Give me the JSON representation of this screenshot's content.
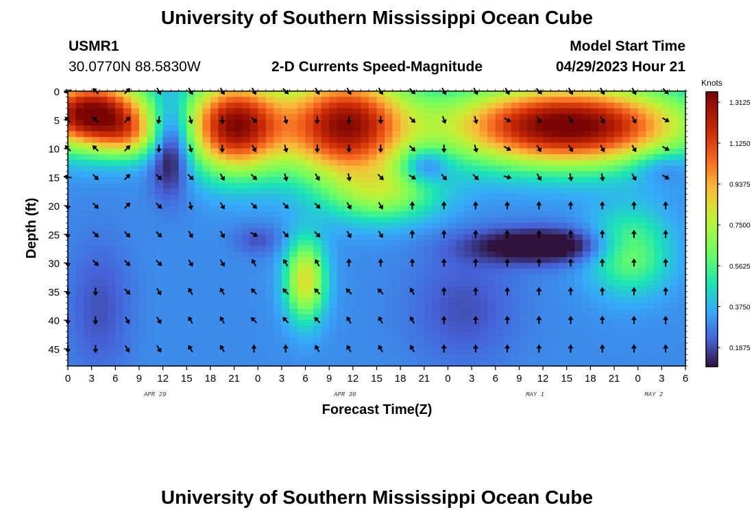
{
  "page_title": "University of Southern Mississippi Ocean Cube",
  "footer_title": "University of Southern Mississippi Ocean Cube",
  "station": {
    "id": "USMR1",
    "coordinates": "30.0770N  88.5830W"
  },
  "center_title": "2-D Currents Speed-Magnitude",
  "model_start": {
    "label": "Model Start Time",
    "value": "04/29/2023 Hour 21"
  },
  "chart_data": {
    "type": "heatmap",
    "title": "2-D Currents Speed-Magnitude",
    "xlabel": "Forecast Time(Z)",
    "ylabel": "Depth (ft)",
    "x_range_hours": [
      0,
      78
    ],
    "y_range_ft": [
      0,
      48
    ],
    "x_ticks": [
      "0",
      "3",
      "6",
      "9",
      "12",
      "15",
      "18",
      "21",
      "0",
      "3",
      "6",
      "9",
      "12",
      "15",
      "18",
      "21",
      "0",
      "3",
      "6",
      "9",
      "12",
      "15",
      "18",
      "21",
      "0",
      "3",
      "6"
    ],
    "y_ticks": [
      0,
      5,
      10,
      15,
      20,
      25,
      30,
      35,
      40,
      45
    ],
    "date_labels": [
      {
        "text": "APR 29",
        "hour": 11
      },
      {
        "text": "APR 30",
        "hour": 35
      },
      {
        "text": "MAY 1",
        "hour": 59
      },
      {
        "text": "MAY 2",
        "hour": 74
      }
    ],
    "colorbar": {
      "unit": "Knots",
      "range": [
        0.1,
        1.36
      ],
      "tick_values": [
        1.3125,
        1.125,
        0.9375,
        0.75,
        0.5625,
        0.375,
        0.1875
      ],
      "tick_labels": [
        "1.3125",
        "1.1250",
        "0.9375",
        "0.7500",
        "0.5625",
        "0.3750",
        "0.1875"
      ]
    },
    "base_speed_knots": 0.3,
    "speed_features": [
      {
        "t": 3,
        "d": 4,
        "st": 7,
        "sd": 6,
        "a": 1.1
      },
      {
        "t": 8,
        "d": 8,
        "st": 4,
        "sd": 4,
        "a": 0.3
      },
      {
        "t": 13,
        "d": 9,
        "st": 2.5,
        "sd": 8,
        "a": -0.35
      },
      {
        "t": 21,
        "d": 6,
        "st": 6,
        "sd": 8,
        "a": 1.0
      },
      {
        "t": 35,
        "d": 6,
        "st": 8,
        "sd": 9,
        "a": 1.0
      },
      {
        "t": 40,
        "d": 18,
        "st": 7,
        "sd": 5,
        "a": 0.35
      },
      {
        "t": 30,
        "d": 33,
        "st": 2.5,
        "sd": 7,
        "a": 0.55
      },
      {
        "t": 24,
        "d": 26,
        "st": 3,
        "sd": 2.5,
        "a": -0.1
      },
      {
        "t": 45,
        "d": 13,
        "st": 3,
        "sd": 3,
        "a": -0.25
      },
      {
        "t": 63,
        "d": 6,
        "st": 15,
        "sd": 7,
        "a": 1.1
      },
      {
        "t": 60,
        "d": 27,
        "st": 9,
        "sd": 3,
        "a": -0.3
      },
      {
        "t": 71,
        "d": 28,
        "st": 5,
        "sd": 7,
        "a": 0.35
      },
      {
        "t": 75,
        "d": 13,
        "st": 4,
        "sd": 3,
        "a": -0.15
      },
      {
        "t": 4,
        "d": 38,
        "st": 4,
        "sd": 12,
        "a": -0.1
      },
      {
        "t": 50,
        "d": 38,
        "st": 7,
        "sd": 10,
        "a": -0.1
      }
    ],
    "vector_rows_ft": [
      0,
      5,
      10,
      15,
      20,
      25,
      30,
      35,
      40,
      45
    ],
    "vector_cols_hours": [
      0,
      3.5,
      7.5,
      11.5,
      15.5,
      19.5,
      23.5,
      27.5,
      31.5,
      35.5,
      39.5,
      43.5,
      47.5,
      51.5,
      55.5,
      59.5,
      63.5,
      67.5,
      71.5,
      75.5
    ],
    "vector_angles_deg": [
      [
        200,
        135,
        45,
        300,
        300,
        300,
        300,
        315,
        300,
        300,
        300,
        315,
        300,
        300,
        300,
        315,
        300,
        300,
        300,
        315
      ],
      [
        135,
        135,
        45,
        260,
        285,
        270,
        315,
        285,
        270,
        270,
        270,
        315,
        290,
        285,
        330,
        300,
        300,
        300,
        300,
        330
      ],
      [
        135,
        135,
        45,
        270,
        285,
        270,
        300,
        285,
        270,
        270,
        270,
        315,
        270,
        285,
        330,
        300,
        300,
        300,
        300,
        330
      ],
      [
        170,
        315,
        45,
        315,
        315,
        300,
        315,
        285,
        300,
        280,
        315,
        330,
        310,
        315,
        345,
        300,
        280,
        280,
        300,
        330
      ],
      [
        270,
        315,
        45,
        315,
        280,
        300,
        315,
        315,
        315,
        300,
        300,
        90,
        90,
        90,
        90,
        90,
        90,
        90,
        90,
        90
      ],
      [
        270,
        315,
        315,
        315,
        300,
        300,
        330,
        315,
        315,
        300,
        300,
        90,
        90,
        90,
        90,
        90,
        90,
        90,
        90,
        90
      ],
      [
        270,
        315,
        315,
        315,
        300,
        300,
        120,
        120,
        120,
        90,
        90,
        90,
        90,
        90,
        90,
        90,
        90,
        90,
        90,
        90
      ],
      [
        270,
        270,
        315,
        300,
        120,
        120,
        135,
        135,
        135,
        135,
        135,
        120,
        90,
        90,
        90,
        90,
        90,
        90,
        90,
        90
      ],
      [
        270,
        270,
        300,
        300,
        120,
        120,
        135,
        135,
        135,
        120,
        120,
        120,
        90,
        90,
        90,
        90,
        90,
        90,
        90,
        90
      ],
      [
        270,
        270,
        300,
        300,
        120,
        120,
        90,
        90,
        120,
        120,
        120,
        120,
        90,
        90,
        90,
        90,
        90,
        90,
        90,
        90
      ]
    ]
  }
}
